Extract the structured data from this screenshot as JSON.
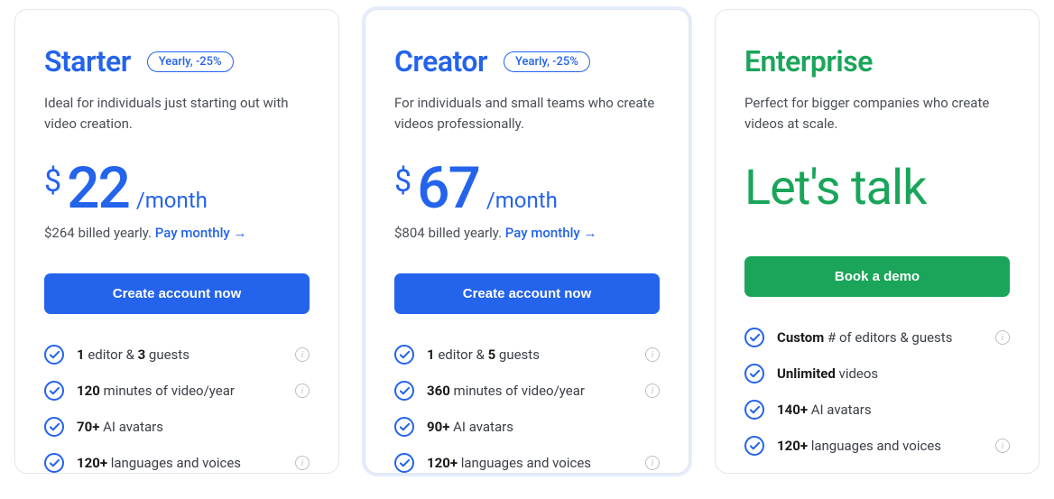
{
  "colors": {
    "blue": "#2463eb",
    "green": "#1aa55a",
    "text": "#1a1a1a",
    "muted": "#4a4f57"
  },
  "plans": [
    {
      "id": "starter",
      "name": "Starter",
      "name_color": "#2463eb",
      "discount_badge": "Yearly, -25%",
      "badge_color": "#2463eb",
      "description": "Ideal for individuals just starting out with video creation.",
      "currency": "$",
      "price": "22",
      "period": "/month",
      "price_color": "#2463eb",
      "billing_note": "$264 billed yearly.",
      "pay_link": "Pay monthly →",
      "cta_label": "Create account now",
      "cta_bg": "#2463eb",
      "lets_talk": null,
      "features": [
        {
          "bold1": "1",
          "mid": " editor & ",
          "bold2": "3",
          "rest": " guests",
          "info": true
        },
        {
          "bold1": "120",
          "mid": " minutes of video/year",
          "bold2": "",
          "rest": "",
          "info": true
        },
        {
          "bold1": "70+",
          "mid": " AI avatars",
          "bold2": "",
          "rest": "",
          "info": false
        },
        {
          "bold1": "120+",
          "mid": " languages and voices",
          "bold2": "",
          "rest": "",
          "info": true
        }
      ]
    },
    {
      "id": "creator",
      "name": "Creator",
      "name_color": "#2463eb",
      "discount_badge": "Yearly, -25%",
      "badge_color": "#2463eb",
      "description": "For individuals and small teams who create videos professionally.",
      "currency": "$",
      "price": "67",
      "period": "/month",
      "price_color": "#2463eb",
      "billing_note": "$804 billed yearly.",
      "pay_link": "Pay monthly →",
      "cta_label": "Create account now",
      "cta_bg": "#2463eb",
      "lets_talk": null,
      "features": [
        {
          "bold1": "1",
          "mid": " editor & ",
          "bold2": "5",
          "rest": " guests",
          "info": true
        },
        {
          "bold1": "360",
          "mid": " minutes of video/year",
          "bold2": "",
          "rest": "",
          "info": true
        },
        {
          "bold1": "90+",
          "mid": " AI avatars",
          "bold2": "",
          "rest": "",
          "info": false
        },
        {
          "bold1": "120+",
          "mid": " languages and voices",
          "bold2": "",
          "rest": "",
          "info": true
        }
      ]
    },
    {
      "id": "enterprise",
      "name": "Enterprise",
      "name_color": "#1aa55a",
      "discount_badge": null,
      "badge_color": null,
      "description": "Perfect for bigger companies who create videos at scale.",
      "currency": null,
      "price": null,
      "period": null,
      "price_color": null,
      "billing_note": null,
      "pay_link": null,
      "cta_label": "Book a demo",
      "cta_bg": "#1aa55a",
      "lets_talk": "Let's talk",
      "lets_talk_color": "#1aa55a",
      "features": [
        {
          "bold1": "Custom",
          "mid": " # of editors & guests",
          "bold2": "",
          "rest": "",
          "info": true
        },
        {
          "bold1": "Unlimited",
          "mid": " videos",
          "bold2": "",
          "rest": "",
          "info": false
        },
        {
          "bold1": "140+",
          "mid": " AI avatars",
          "bold2": "",
          "rest": "",
          "info": false
        },
        {
          "bold1": "120+",
          "mid": " languages and voices",
          "bold2": "",
          "rest": "",
          "info": true
        }
      ]
    }
  ]
}
